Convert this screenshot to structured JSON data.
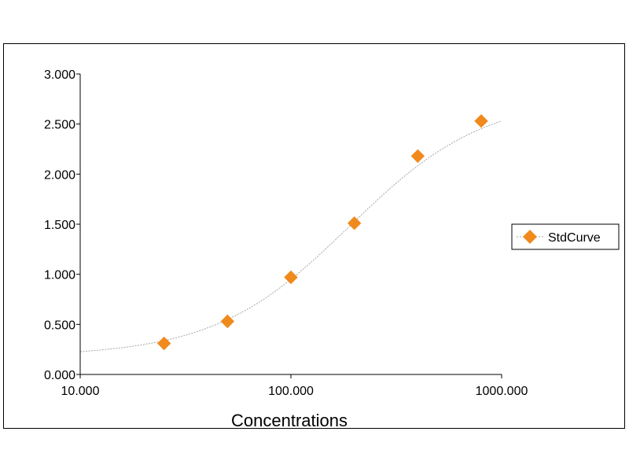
{
  "chart_data": {
    "type": "scatter",
    "title": "",
    "xlabel": "Concentrations",
    "ylabel": "",
    "x_scale": "log",
    "xlim": [
      10,
      1000
    ],
    "ylim": [
      0,
      3
    ],
    "x_ticks": [
      10,
      100,
      1000
    ],
    "x_tick_labels": [
      "10.000",
      "100.000",
      "1000.000"
    ],
    "y_ticks": [
      0,
      0.5,
      1,
      1.5,
      2,
      2.5,
      3
    ],
    "y_tick_labels": [
      "0.000",
      "0.500",
      "1.000",
      "1.500",
      "2.000",
      "2.500",
      "3.000"
    ],
    "grid": false,
    "legend_position": "right",
    "series": [
      {
        "name": "StdCurve",
        "color": "#f08a1c",
        "marker": "diamond",
        "x": [
          25,
          50,
          100,
          200,
          400,
          800
        ],
        "y": [
          0.31,
          0.53,
          0.97,
          1.51,
          2.18,
          2.53
        ]
      }
    ],
    "fit_curve": {
      "model": "4PL",
      "color": "#a6a6a6",
      "bottom": 0.18,
      "top": 2.78,
      "ec50": 190,
      "hill": 1.35,
      "x_range": [
        10,
        1000
      ]
    }
  }
}
